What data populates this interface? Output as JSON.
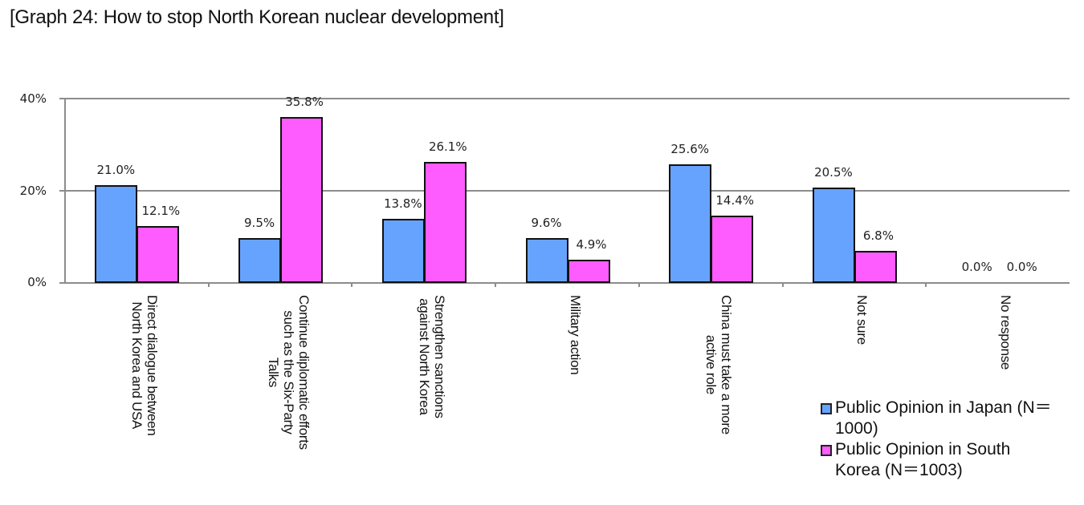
{
  "title": "[Graph 24: How to stop North Korean nuclear development]",
  "chart_data": {
    "type": "bar",
    "title": "[Graph 24: How to stop North Korean nuclear development]",
    "xlabel": "",
    "ylabel": "",
    "ylim": [
      0,
      40
    ],
    "yticks": [
      "0%",
      "20%",
      "40%"
    ],
    "grid": true,
    "legend_position": "bottom-right",
    "categories": [
      "Direct dialogue between North Korea and USA",
      "Continue diplomatic efforts such as the Six-Party Talks",
      "Strengthen sanctions against North Korea",
      "Military action",
      "China must take a more active role",
      "Not sure",
      "No response"
    ],
    "series": [
      {
        "name": "Public Opinion in Japan (N=1000)",
        "color": "#66a3ff",
        "values": [
          21.0,
          9.5,
          13.8,
          9.6,
          25.6,
          20.5,
          0.0
        ]
      },
      {
        "name": "Public Opinion in South Korea (N=1003)",
        "color": "#ff5cff",
        "values": [
          12.1,
          35.8,
          26.1,
          4.9,
          14.4,
          6.8,
          0.0
        ]
      }
    ]
  },
  "axis": {
    "y0": "0%",
    "y20": "20%",
    "y40": "40%"
  },
  "categories_lines": [
    [
      "Direct dialogue between",
      "North Korea and USA"
    ],
    [
      "Continue diplomatic efforts",
      "such as the Six-Party",
      "Talks"
    ],
    [
      "Strengthen sanctions",
      "against North Korea"
    ],
    [
      "Military action"
    ],
    [
      "China must take a more",
      "active role"
    ],
    [
      "Not sure"
    ],
    [
      "No response"
    ]
  ],
  "labels": {
    "jp": [
      "21.0%",
      "9.5%",
      "13.8%",
      "9.6%",
      "25.6%",
      "20.5%",
      "0.0%"
    ],
    "kr": [
      "12.1%",
      "35.8%",
      "26.1%",
      "4.9%",
      "14.4%",
      "6.8%",
      "0.0%"
    ]
  },
  "legend": {
    "jp": [
      "Public Opinion in Japan (N＝",
      "1000)"
    ],
    "kr": [
      "Public Opinion in South",
      "Korea (N＝1003)"
    ]
  }
}
